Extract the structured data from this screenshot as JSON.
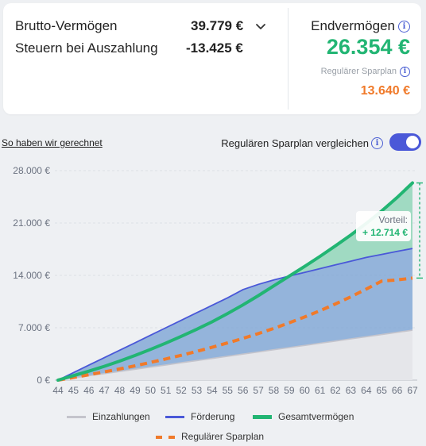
{
  "summary": {
    "brutto_label": "Brutto-Vermögen",
    "brutto_value": "39.779 €",
    "steuern_label": "Steuern bei Auszahlung",
    "steuern_value": "-13.425 €",
    "end_label": "Endvermögen",
    "end_value": "26.354 €",
    "regular_label": "Regulärer Sparplan",
    "regular_value": "13.640 €"
  },
  "controls": {
    "method_link": "So haben wir gerechnet",
    "compare_label": "Regulären Sparplan vergleichen",
    "compare_on": true
  },
  "colors": {
    "green": "#22b573",
    "orange": "#f07a2a",
    "blue": "#4a58d8",
    "gray": "#c4c4cc",
    "info": "#4b5fd3"
  },
  "icons": {
    "dropdown": "chevron-down-icon",
    "info": "info-icon"
  },
  "chart_data": {
    "type": "area",
    "x": [
      44,
      45,
      46,
      47,
      48,
      49,
      50,
      51,
      52,
      53,
      54,
      55,
      56,
      57,
      58,
      59,
      60,
      61,
      62,
      63,
      64,
      65,
      66,
      67
    ],
    "x_tick_labels": [
      "44",
      "45",
      "46",
      "47",
      "48",
      "49",
      "50",
      "51",
      "52",
      "53",
      "54",
      "55",
      "56",
      "57",
      "58",
      "59",
      "60",
      "61",
      "62",
      "63",
      "64",
      "65",
      "66",
      "67"
    ],
    "ylim": [
      0,
      28000
    ],
    "y_ticks": [
      0,
      7000,
      14000,
      21000,
      28000
    ],
    "y_tick_labels": [
      "0 €",
      "7.000 €",
      "14.000 €",
      "21.000 €",
      "28.000 €"
    ],
    "grid": true,
    "legend_position": "bottom",
    "series": [
      {
        "name": "Einzahlungen",
        "values": [
          0,
          290,
          580,
          870,
          1160,
          1450,
          1740,
          2030,
          2320,
          2610,
          2900,
          3190,
          3480,
          3770,
          4060,
          4350,
          4640,
          4930,
          5220,
          5510,
          5800,
          6090,
          6380,
          6670
        ]
      },
      {
        "name": "Förderung",
        "values": [
          0,
          1000,
          2000,
          3000,
          4000,
          5000,
          6000,
          7000,
          8000,
          9000,
          10000,
          11000,
          12100,
          12800,
          13400,
          13900,
          14400,
          14900,
          15400,
          15900,
          16400,
          16800,
          17200,
          17600
        ]
      },
      {
        "name": "Gesamtvermögen",
        "values": [
          0,
          600,
          1200,
          1850,
          2550,
          3300,
          4100,
          4950,
          5850,
          6800,
          7800,
          8900,
          10050,
          11300,
          12600,
          13900,
          15200,
          16550,
          17950,
          19400,
          20950,
          22600,
          24400,
          26354
        ]
      },
      {
        "name": "Regulärer Sparplan",
        "values": [
          0,
          350,
          720,
          1100,
          1500,
          1920,
          2360,
          2830,
          3320,
          3840,
          4390,
          4970,
          5580,
          6230,
          6920,
          7660,
          8440,
          9280,
          10180,
          11140,
          12160,
          13240,
          13400,
          13640
        ]
      }
    ],
    "annotation": {
      "label": "Vorteil:",
      "value": "+ 12.714 €",
      "x": 67,
      "from": 13640,
      "to": 26354
    }
  },
  "legend": {
    "items": [
      {
        "label": "Einzahlungen"
      },
      {
        "label": "Förderung"
      },
      {
        "label": "Gesamtvermögen"
      },
      {
        "label": "Regulärer Sparplan"
      }
    ]
  }
}
